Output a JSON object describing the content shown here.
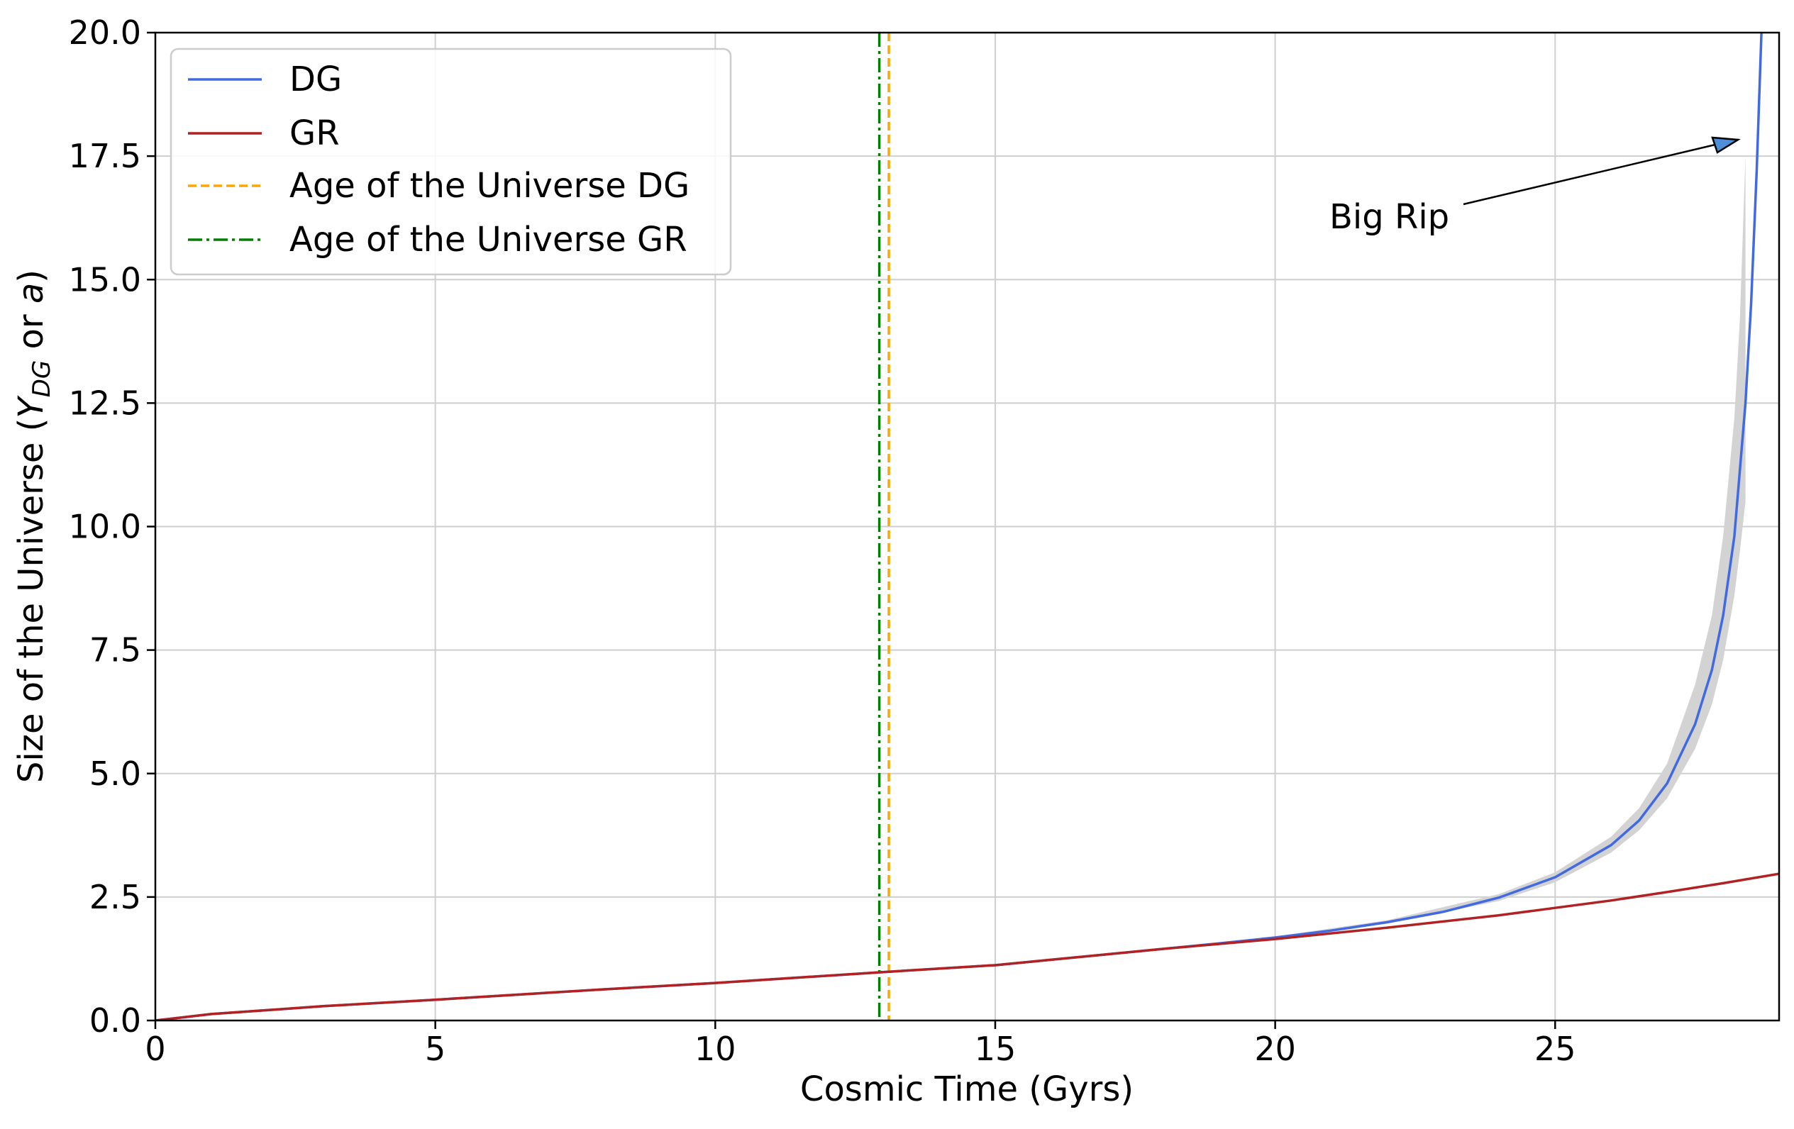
{
  "chart_data": {
    "type": "line",
    "title": "",
    "xlabel": "Cosmic Time (Gyrs)",
    "ylabel_prefix": "Size of the Universe (",
    "ylabel_var": "Y",
    "ylabel_sub": "DG",
    "ylabel_mid": " or ",
    "ylabel_var2": "a",
    "ylabel_suffix": ")",
    "xlim": [
      0,
      29
    ],
    "ylim": [
      0,
      20
    ],
    "xticks": [
      0,
      5,
      10,
      15,
      20,
      25
    ],
    "xtick_labels": [
      "0",
      "5",
      "10",
      "15",
      "20",
      "25"
    ],
    "yticks": [
      0,
      2.5,
      5,
      7.5,
      10,
      12.5,
      15,
      17.5,
      20
    ],
    "ytick_labels": [
      "0.0",
      "2.5",
      "5.0",
      "7.5",
      "10.0",
      "12.5",
      "15.0",
      "17.5",
      "20.0"
    ],
    "grid": true,
    "legend_position": "top-left",
    "series": [
      {
        "name": "DG",
        "color": "#4169E1",
        "style": "solid",
        "x": [
          0,
          1,
          2,
          3,
          5,
          8,
          10,
          13,
          15,
          18,
          19,
          20,
          21,
          22,
          23,
          24,
          25,
          26,
          26.5,
          27,
          27.5,
          27.8,
          28,
          28.2,
          28.4,
          28.5,
          28.6,
          28.7,
          28.75
        ],
        "y": [
          0,
          0.13,
          0.21,
          0.29,
          0.42,
          0.63,
          0.76,
          0.98,
          1.12,
          1.45,
          1.56,
          1.68,
          1.82,
          1.99,
          2.2,
          2.49,
          2.9,
          3.55,
          4.05,
          4.8,
          6.0,
          7.1,
          8.2,
          9.8,
          12.5,
          14.5,
          17.2,
          20.5,
          22
        ]
      },
      {
        "name": "GR",
        "color": "#B22222",
        "style": "solid",
        "x": [
          0,
          1,
          2,
          3,
          5,
          8,
          10,
          13,
          15,
          18,
          20,
          22,
          24,
          25,
          26,
          27,
          28,
          29
        ],
        "y": [
          0,
          0.13,
          0.21,
          0.29,
          0.42,
          0.63,
          0.76,
          0.98,
          1.12,
          1.45,
          1.65,
          1.88,
          2.13,
          2.28,
          2.43,
          2.6,
          2.78,
          2.97
        ]
      }
    ],
    "uncertainty_band": {
      "color": "#d3d3d3",
      "x": [
        20,
        22,
        24,
        25,
        26,
        26.5,
        27,
        27.5,
        27.8,
        28,
        28.2,
        28.3,
        28.4
      ],
      "y_low": [
        1.66,
        1.96,
        2.42,
        2.8,
        3.4,
        3.85,
        4.5,
        5.5,
        6.4,
        7.3,
        8.6,
        9.5,
        10.5
      ],
      "y_high": [
        1.7,
        2.03,
        2.56,
        3.0,
        3.72,
        4.3,
        5.2,
        6.8,
        8.2,
        9.8,
        12.2,
        14.2,
        17.5
      ]
    },
    "vlines": [
      {
        "name": "Age of the Universe DG",
        "x": 13.1,
        "color": "#FFA500",
        "style": "dashed"
      },
      {
        "name": "Age of the Universe GR",
        "x": 12.93,
        "color": "#008000",
        "style": "dashdot"
      }
    ],
    "annotation": {
      "text": "Big Rip",
      "text_at": [
        21,
        16.2
      ],
      "arrow_to": [
        28.5,
        17.8
      ]
    }
  }
}
